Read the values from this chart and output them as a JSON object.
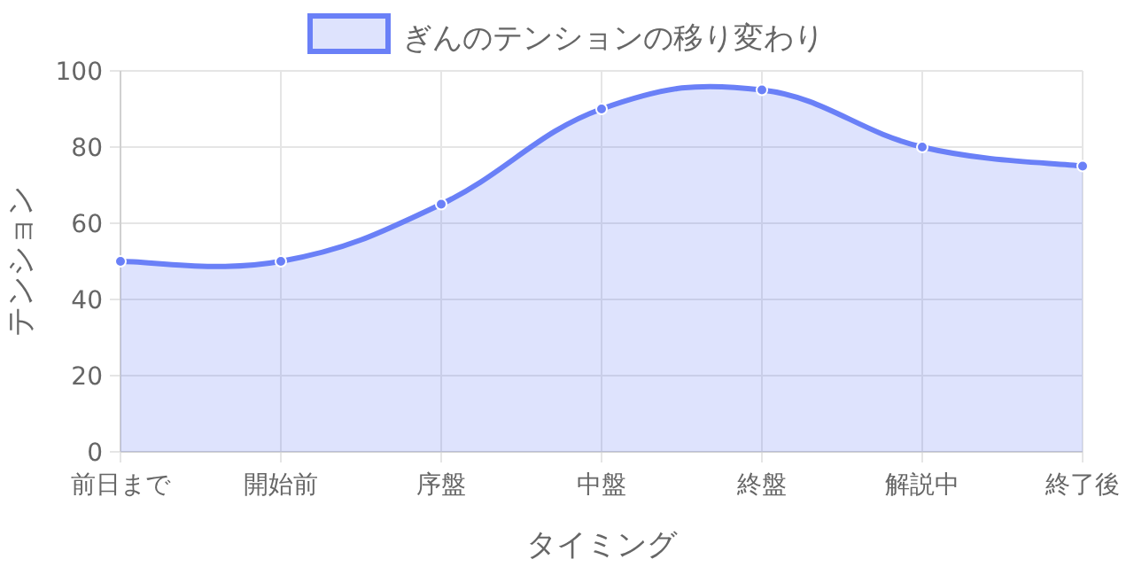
{
  "chart_data": {
    "type": "area",
    "xlabel": "タイミング",
    "ylabel": "テンション",
    "categories": [
      "前日まで",
      "開始前",
      "序盤",
      "中盤",
      "終盤",
      "解説中",
      "終了後"
    ],
    "series": [
      {
        "name": "ぎんのテンションの移り変わり",
        "color": "#6a80f7",
        "values": [
          50,
          50,
          65,
          90,
          95,
          80,
          75
        ]
      }
    ],
    "ylim": [
      0,
      100
    ],
    "yticks": [
      0,
      20,
      40,
      60,
      80,
      100
    ],
    "grid": true,
    "legend": "top",
    "marker": "circle",
    "line_style": "solid"
  }
}
